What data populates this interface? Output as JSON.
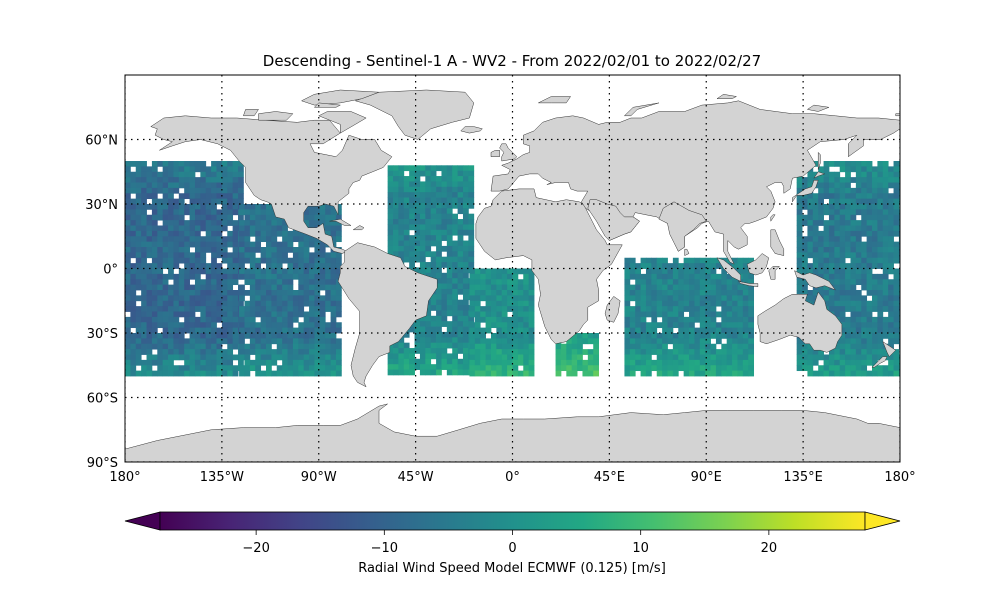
{
  "chart_data": {
    "type": "heatmap",
    "title": "Descending - Sentinel-1 A - WV2 - From 2022/02/01 to 2022/02/27",
    "projection": "plate-carree",
    "xlim": [
      -180,
      180
    ],
    "ylim": [
      -90,
      90
    ],
    "grid": "dotted",
    "lat_ticks": [
      {
        "value": 60,
        "label": "60°N"
      },
      {
        "value": 30,
        "label": "30°N"
      },
      {
        "value": 0,
        "label": "0°"
      },
      {
        "value": -30,
        "label": "30°S"
      },
      {
        "value": -60,
        "label": "60°S"
      },
      {
        "value": -90,
        "label": "90°S"
      }
    ],
    "lon_ticks": [
      {
        "value": -180,
        "label": "180°"
      },
      {
        "value": -135,
        "label": "135°W"
      },
      {
        "value": -90,
        "label": "90°W"
      },
      {
        "value": -45,
        "label": "45°W"
      },
      {
        "value": 0,
        "label": "0°"
      },
      {
        "value": 45,
        "label": "45°E"
      },
      {
        "value": 90,
        "label": "90°E"
      },
      {
        "value": 135,
        "label": "135°E"
      },
      {
        "value": 180,
        "label": "180°"
      }
    ],
    "colorbar": {
      "label": "Radial Wind Speed Model ECMWF (0.125) [m/s]",
      "colormap": "viridis",
      "range": [
        -27.5,
        27.5
      ],
      "extend": "both",
      "ticks": [
        {
          "value": -20,
          "label": "−20"
        },
        {
          "value": -10,
          "label": "−10"
        },
        {
          "value": 0,
          "label": "0"
        },
        {
          "value": 10,
          "label": "10"
        },
        {
          "value": 20,
          "label": "20"
        }
      ]
    },
    "data_coverage": {
      "lat_range": [
        -50,
        50
      ],
      "swaths": [
        {
          "lon_range": [
            -180,
            -127
          ],
          "lat_range": [
            -50,
            50
          ],
          "typical_value": -9
        },
        {
          "lon_range": [
            -127,
            -80
          ],
          "lat_range": [
            -50,
            30
          ],
          "typical_value": -7
        },
        {
          "lon_range": [
            -58,
            -20
          ],
          "lat_range": [
            -48,
            48
          ],
          "typical_value": -3
        },
        {
          "lon_range": [
            -20,
            10
          ],
          "lat_range": [
            -50,
            0
          ],
          "typical_value": 0
        },
        {
          "lon_range": [
            20,
            40
          ],
          "lat_range": [
            -50,
            -30
          ],
          "typical_value": 3
        },
        {
          "lon_range": [
            52,
            110
          ],
          "lat_range": [
            -50,
            5
          ],
          "typical_value": -3
        },
        {
          "lon_range": [
            132,
            180
          ],
          "lat_range": [
            -50,
            50
          ],
          "typical_value": -5
        }
      ]
    },
    "colors": {
      "land": "#d3d3d3",
      "coast": "#333333",
      "ocean": "#ffffff"
    }
  }
}
